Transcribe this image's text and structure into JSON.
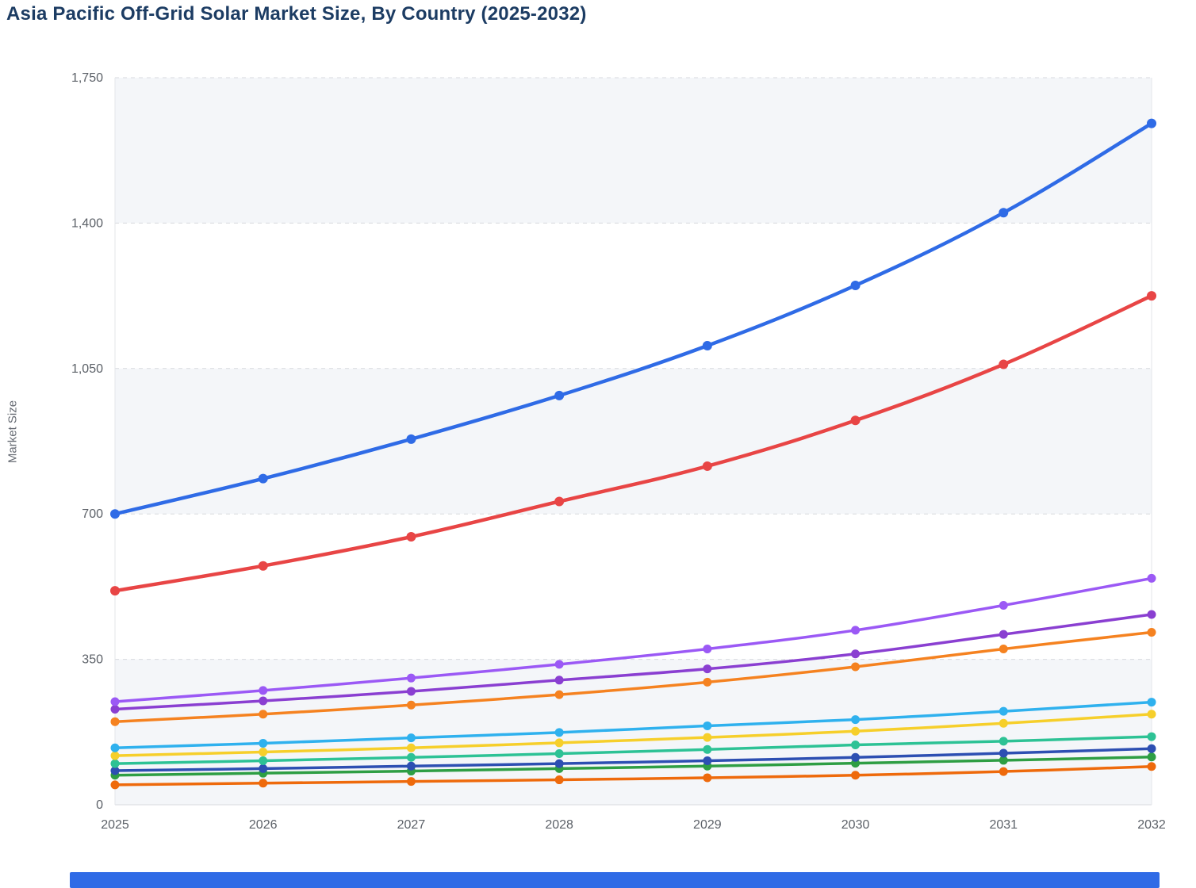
{
  "title": "Asia Pacific Off-Grid Solar Market Size, By Country (2025-2032)",
  "chart_data": {
    "type": "line",
    "x": [
      2025,
      2026,
      2027,
      2028,
      2029,
      2030,
      2031,
      2032
    ],
    "xlabel": "",
    "ylabel": "Market Size",
    "ylim": [
      0,
      1750
    ],
    "yticks": [
      0,
      350,
      700,
      1050,
      1400,
      1750
    ],
    "ytick_labels": [
      "0",
      "350",
      "700",
      "1,050",
      "1,400",
      "1,750"
    ],
    "grid": "dashed-horizontal",
    "legend_position": "none",
    "marker": "dot",
    "series": [
      {
        "name": "series-blue",
        "color": "#2f6be6",
        "values": [
          700,
          785,
          880,
          985,
          1105,
          1250,
          1425,
          1640
        ]
      },
      {
        "name": "series-red",
        "color": "#e84545",
        "values": [
          515,
          575,
          645,
          730,
          815,
          925,
          1060,
          1225
        ]
      },
      {
        "name": "series-violet",
        "color": "#9b59f5",
        "values": [
          248,
          275,
          305,
          338,
          375,
          420,
          480,
          545
        ]
      },
      {
        "name": "series-purple",
        "color": "#8a3fd1",
        "values": [
          230,
          250,
          273,
          300,
          327,
          363,
          410,
          458
        ]
      },
      {
        "name": "series-orange",
        "color": "#f58220",
        "values": [
          200,
          218,
          240,
          265,
          295,
          332,
          375,
          415
        ]
      },
      {
        "name": "series-skyblue",
        "color": "#2fb1ee",
        "values": [
          137,
          148,
          161,
          174,
          190,
          205,
          225,
          247
        ]
      },
      {
        "name": "series-yellow",
        "color": "#f6cf2b",
        "values": [
          118,
          127,
          137,
          149,
          162,
          177,
          196,
          218
        ]
      },
      {
        "name": "series-teal",
        "color": "#2dc295",
        "values": [
          99,
          106,
          114,
          123,
          133,
          144,
          153,
          164
        ]
      },
      {
        "name": "series-navy",
        "color": "#2d4fb2",
        "values": [
          82,
          87,
          93,
          99,
          106,
          114,
          124,
          135
        ]
      },
      {
        "name": "series-green",
        "color": "#2e9e44",
        "values": [
          71,
          76,
          81,
          87,
          93,
          100,
          107,
          115
        ]
      },
      {
        "name": "series-darkorange",
        "color": "#ee6a0c",
        "values": [
          48,
          52,
          56,
          60,
          65,
          71,
          80,
          92
        ]
      }
    ]
  },
  "colors": {
    "title_text": "#1c3c63",
    "axis_text": "#5c6168",
    "grid_line": "#d7dade",
    "band_fill": "#f4f6f9",
    "axis_edge": "#e3e6ea",
    "bottom_bar": "#2f6be6",
    "background": "#ffffff"
  }
}
